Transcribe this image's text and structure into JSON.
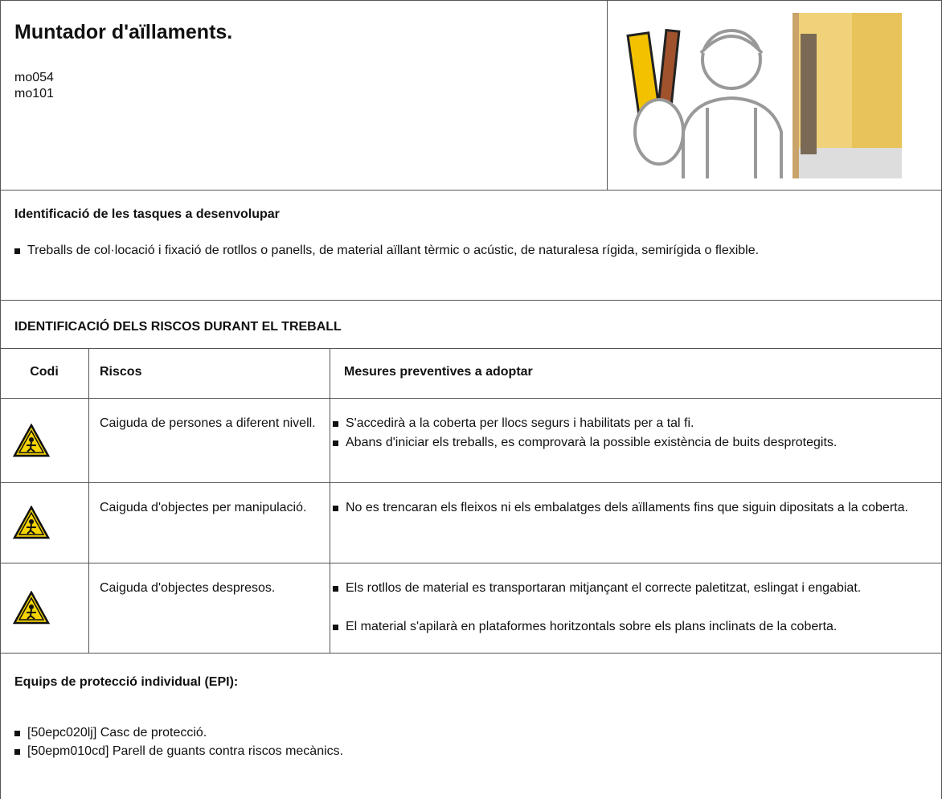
{
  "header": {
    "title": "Muntador d'aïllaments.",
    "codes": [
      "mo054",
      "mo101"
    ]
  },
  "tasks": {
    "title": "Identificació de les tasques a desenvolupar",
    "items": [
      "Treballs de col·locació i fixació de rotllos o panells, de material aïllant tèrmic o acústic, de naturalesa rígida, semirígida o flexible."
    ]
  },
  "risks": {
    "title": "IDENTIFICACIÓ DELS RISCOS DURANT EL TREBALL",
    "columns": [
      "Codi",
      "Riscos",
      "Mesures preventives a adoptar"
    ],
    "rows": [
      {
        "risk": "Caiguda de persones a diferent nivell.",
        "measures": [
          "S'accedirà a la coberta per llocs segurs i habilitats per a tal fi.",
          "Abans d'iniciar els treballs, es comprovarà la possible existència de buits desprotegits."
        ]
      },
      {
        "risk": "Caiguda d'objectes per manipulació.",
        "measures": [
          "No es trencaran els fleixos ni els embalatges dels aïllaments fins que siguin dipositats a la coberta."
        ]
      },
      {
        "risk": "Caiguda d'objectes despresos.",
        "measures": [
          "Els rotllos de material es transportaran mitjançant el correcte paletitzat, eslingat i engabiat.",
          "El material s'apilarà en plataformes horitzontals sobre els plans inclinats de la coberta."
        ]
      }
    ]
  },
  "epi": {
    "title": "Equips de protecció individual (EPI):",
    "items": [
      "[50epc020lj] Casc de protecció.",
      "[50epm010cd] Parell de guants contra riscos mecànics."
    ]
  }
}
